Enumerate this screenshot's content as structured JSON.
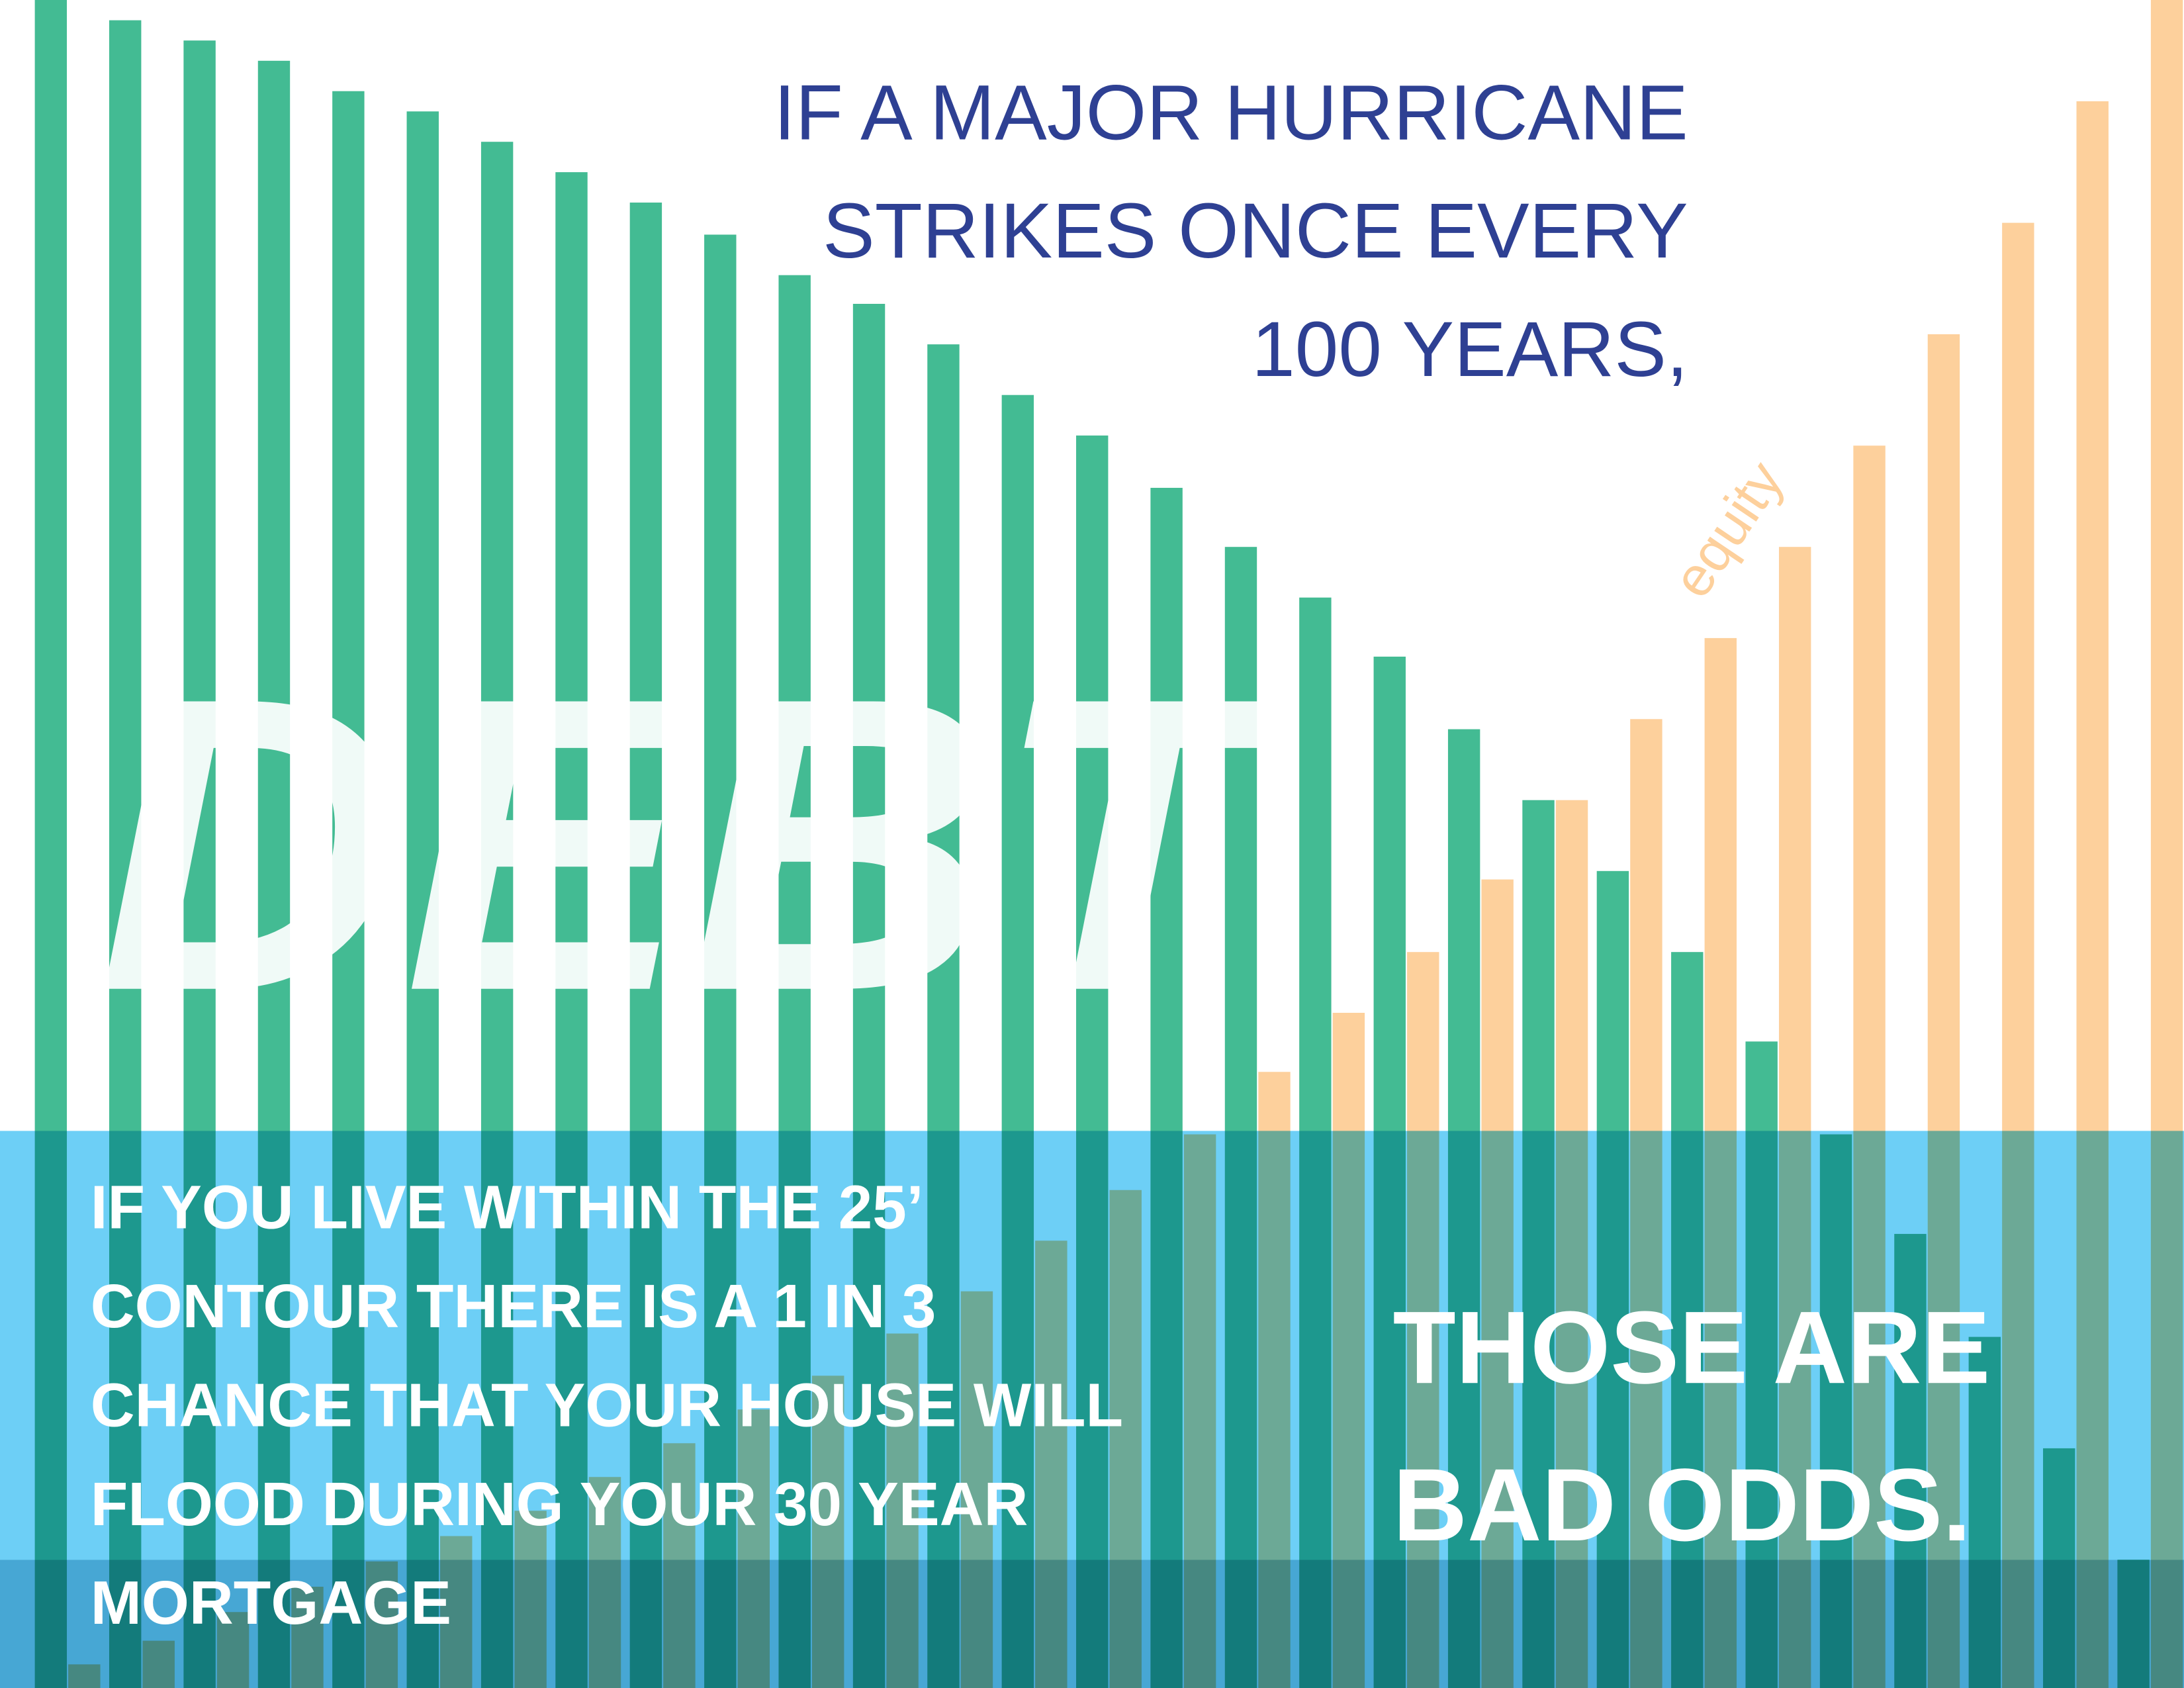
{
  "chart_data": {
    "type": "bar",
    "categories": [
      null,
      null,
      null,
      null,
      null,
      null,
      null,
      null,
      null,
      null,
      null,
      null,
      null,
      null,
      null,
      null,
      null,
      null,
      null,
      null,
      null,
      null,
      null,
      null,
      null,
      null,
      null,
      null,
      null
    ],
    "series": [
      {
        "name": "DEBT",
        "color": "#43bb93",
        "values": [
          100,
          98.8,
          97.6,
          96.4,
          94.6,
          93.4,
          91.6,
          89.8,
          88,
          86.1,
          83.7,
          82,
          79.6,
          76.6,
          74.2,
          71.1,
          67.6,
          64.6,
          61.1,
          56.8,
          52.6,
          48.4,
          43.6,
          38.3,
          32.8,
          26.9,
          20.8,
          14.2,
          7.6
        ]
      },
      {
        "name": "equity",
        "color": "#fdd09c",
        "values": [
          1.4,
          2.8,
          4.5,
          6,
          7.5,
          9,
          10.5,
          12.5,
          14.5,
          16.5,
          18.5,
          21,
          23.5,
          26.5,
          29.5,
          32.8,
          36.5,
          40,
          43.6,
          47.9,
          52.6,
          57.4,
          62.2,
          67.6,
          73.6,
          80.2,
          86.8,
          94,
          100
        ]
      }
    ],
    "ylim": [
      0,
      100
    ],
    "headline": [
      "IF A MAJOR HURRICANE",
      "STRIKES ONCE EVERY",
      "100 YEARS,"
    ],
    "note": [
      "IF YOU LIVE WITHIN THE 25’",
      "CONTOUR THERE IS A 1 IN 3",
      "CHANCE THAT YOUR HOUSE WILL",
      "FLOOD DURING YOUR 30 YEAR",
      "MORTGAGE"
    ],
    "callout": [
      "THOSE ARE",
      "BAD ODDS."
    ]
  }
}
